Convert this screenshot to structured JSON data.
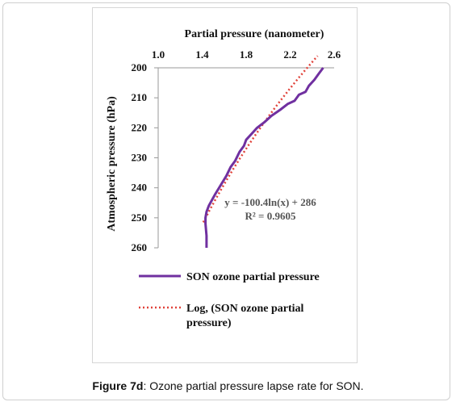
{
  "caption": {
    "label": "Figure 7d",
    "text": ": Ozone partial pressure lapse rate for SON."
  },
  "chart_data": {
    "type": "line",
    "title": "",
    "xlabel": "Partial pressure (nanometer)",
    "ylabel": "Atmospheric pressure (hPa)",
    "xlim": [
      1.0,
      2.6
    ],
    "ylim": [
      200,
      260
    ],
    "y_inverted": true,
    "x_axis_position": "top",
    "x_ticks": [
      "1.0",
      "1.4",
      "1.8",
      "2.2",
      "2.6"
    ],
    "y_ticks": [
      "200",
      "210",
      "220",
      "230",
      "240",
      "250",
      "260"
    ],
    "legend_position": "bottom",
    "series": [
      {
        "name": "SON ozone partial pressure",
        "color": "#7030A0",
        "style": "solid",
        "x": [
          2.5,
          2.46,
          2.42,
          2.37,
          2.34,
          2.28,
          2.24,
          2.18,
          2.11,
          2.03,
          1.97,
          1.9,
          1.85,
          1.8,
          1.78,
          1.74,
          1.7,
          1.66,
          1.62,
          1.57,
          1.52,
          1.49,
          1.46,
          1.44,
          1.43,
          1.43,
          1.44,
          1.44
        ],
        "y": [
          200,
          202,
          204,
          206,
          208,
          209,
          211,
          212,
          214,
          216,
          218,
          220,
          222,
          224,
          226,
          228,
          231,
          233,
          236,
          239,
          242,
          244,
          246,
          248,
          250,
          252,
          256,
          260
        ]
      },
      {
        "name": "Log, (SON ozone partial pressure)",
        "color": "#E0423A",
        "style": "dotted",
        "fit": {
          "a": -100.4,
          "b": 286,
          "form": "y = a*ln(x) + b"
        },
        "x_range": [
          1.41,
          2.45
        ]
      }
    ],
    "annotations": {
      "equation": "y = -100.4ln(x) + 286",
      "r_squared": "R² = 0.9605"
    }
  }
}
